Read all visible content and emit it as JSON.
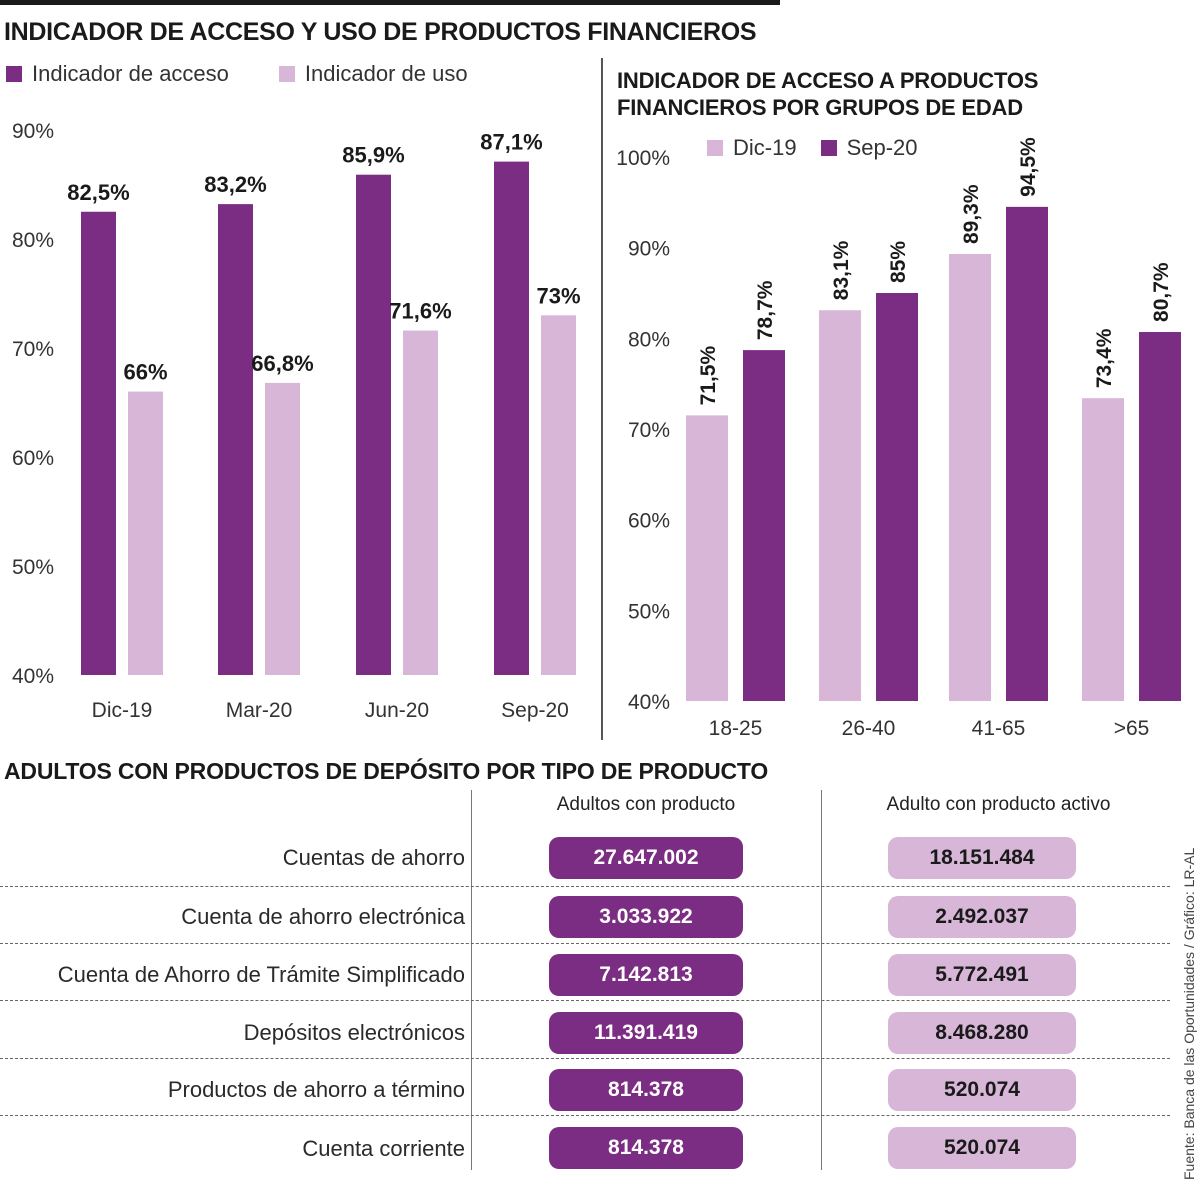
{
  "title": "INDICADOR DE ACCESO Y USO DE PRODUCTOS FINANCIEROS",
  "colors": {
    "dark": "#7b2c83",
    "light": "#d7b6d8"
  },
  "left_legend": {
    "acceso": "Indicador de acceso",
    "uso": "Indicador de uso"
  },
  "right_title_line1": "INDICADOR DE ACCESO A PRODUCTOS",
  "right_title_line2": "FINANCIEROS POR GRUPOS DE EDAD",
  "right_legend": {
    "dic": "Dic-19",
    "sep": "Sep-20"
  },
  "chart_data": [
    {
      "type": "bar",
      "title": "INDICADOR DE ACCESO Y USO DE PRODUCTOS FINANCIEROS",
      "categories": [
        "Dic-19",
        "Mar-20",
        "Jun-20",
        "Sep-20"
      ],
      "series": [
        {
          "name": "Indicador de acceso",
          "values": [
            82.5,
            83.2,
            85.9,
            87.1
          ],
          "labels": [
            "82,5%",
            "83,2%",
            "85,9%",
            "87,1%"
          ]
        },
        {
          "name": "Indicador de uso",
          "values": [
            66,
            66.8,
            71.6,
            73
          ],
          "labels": [
            "66%",
            "66,8%",
            "71,6%",
            "73%"
          ]
        }
      ],
      "ylim": [
        40,
        90
      ],
      "yticks": [
        "40%",
        "50%",
        "60%",
        "70%",
        "80%",
        "90%"
      ],
      "xlabel": "",
      "ylabel": ""
    },
    {
      "type": "bar",
      "title": "INDICADOR DE ACCESO A PRODUCTOS FINANCIEROS POR GRUPOS DE EDAD",
      "categories": [
        "18-25",
        "26-40",
        "41-65",
        ">65"
      ],
      "series": [
        {
          "name": "Dic-19",
          "values": [
            71.5,
            83.1,
            89.3,
            73.4
          ],
          "labels": [
            "71,5%",
            "83,1%",
            "89,3%",
            "73,4%"
          ]
        },
        {
          "name": "Sep-20",
          "values": [
            78.7,
            85,
            94.5,
            80.7
          ],
          "labels": [
            "78,7%",
            "85%",
            "94,5%",
            "80,7%"
          ]
        }
      ],
      "ylim": [
        40,
        100
      ],
      "yticks": [
        "40%",
        "50%",
        "60%",
        "70%",
        "80%",
        "90%",
        "100%"
      ],
      "xlabel": "",
      "ylabel": ""
    }
  ],
  "table": {
    "title": "ADULTOS CON PRODUCTOS DE DEPÓSITO POR TIPO DE PRODUCTO",
    "col1": "Adultos con producto",
    "col2": "Adulto con producto activo",
    "rows": [
      {
        "label": "Cuentas de ahorro",
        "con_producto": "27.647.002",
        "activo": "18.151.484"
      },
      {
        "label": "Cuenta de ahorro electrónica",
        "con_producto": "3.033.922",
        "activo": "2.492.037"
      },
      {
        "label": "Cuenta de Ahorro de Trámite Simplificado",
        "con_producto": "7.142.813",
        "activo": "5.772.491"
      },
      {
        "label": "Depósitos electrónicos",
        "con_producto": "11.391.419",
        "activo": "8.468.280"
      },
      {
        "label": "Productos de ahorro a término",
        "con_producto": "814.378",
        "activo": "520.074"
      },
      {
        "label": "Cuenta corriente",
        "con_producto": "814.378",
        "activo": "520.074"
      }
    ]
  },
  "source": "Fuente: Banca de las Oportunidades / Gráfico: LR-AL"
}
